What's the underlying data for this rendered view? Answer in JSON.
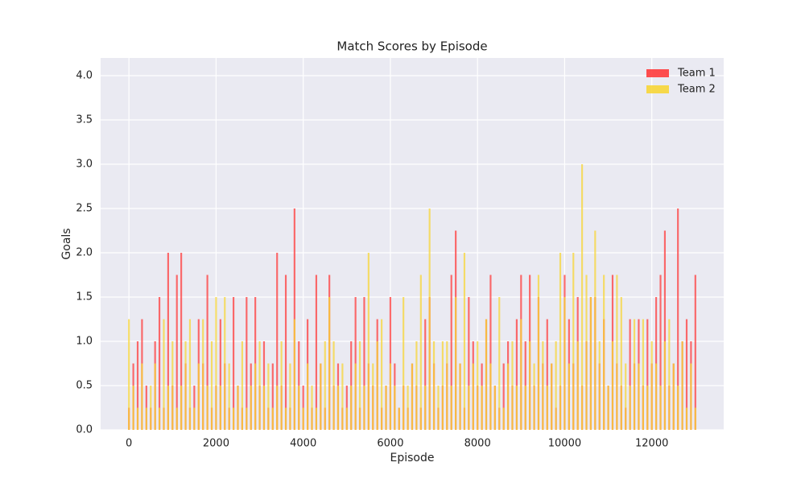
{
  "chart_data": {
    "type": "bar",
    "title": "Match Scores by Episode",
    "x_label": "Episode",
    "y_label": "Goals",
    "x": [
      0,
      100,
      200,
      300,
      400,
      500,
      600,
      700,
      800,
      900,
      1000,
      1100,
      1200,
      1300,
      1400,
      1500,
      1600,
      1700,
      1800,
      1900,
      2000,
      2100,
      2200,
      2300,
      2400,
      2500,
      2600,
      2700,
      2800,
      2900,
      3000,
      3100,
      3200,
      3300,
      3400,
      3500,
      3600,
      3700,
      3800,
      3900,
      4000,
      4100,
      4200,
      4300,
      4400,
      4500,
      4600,
      4700,
      4800,
      4900,
      5000,
      5100,
      5200,
      5300,
      5400,
      5500,
      5600,
      5700,
      5800,
      5900,
      6000,
      6100,
      6200,
      6300,
      6400,
      6500,
      6600,
      6700,
      6800,
      6900,
      7000,
      7100,
      7200,
      7300,
      7400,
      7500,
      7600,
      7700,
      7800,
      7900,
      8000,
      8100,
      8200,
      8300,
      8400,
      8500,
      8600,
      8700,
      8800,
      8900,
      9000,
      9100,
      9200,
      9300,
      9400,
      9500,
      9600,
      9700,
      9800,
      9900,
      10000,
      10100,
      10200,
      10300,
      10400,
      10500,
      10600,
      10700,
      10800,
      10900,
      11000,
      11100,
      11200,
      11300,
      11400,
      11500,
      11600,
      11700,
      11800,
      11900,
      12000,
      12100,
      12200,
      12300,
      12400,
      12500,
      12600,
      12700,
      12800,
      12900,
      13000
    ],
    "series": [
      {
        "name": "Team 1",
        "color": "#ff3b3b",
        "values": [
          0.25,
          0.75,
          1.0,
          1.25,
          0.5,
          0.25,
          1.0,
          1.5,
          0.25,
          2.0,
          0.5,
          1.75,
          2.0,
          0.75,
          0.25,
          0.5,
          1.25,
          0.75,
          1.75,
          0.25,
          0.5,
          1.25,
          0.75,
          0.25,
          1.5,
          0.5,
          0.25,
          1.5,
          0.75,
          1.5,
          0.5,
          1.0,
          0.25,
          0.75,
          2.0,
          0.5,
          1.75,
          0.25,
          2.5,
          1.0,
          0.5,
          1.25,
          0.25,
          1.75,
          0.75,
          0.25,
          1.75,
          0.5,
          0.75,
          0.25,
          0.5,
          1.0,
          1.5,
          0.25,
          1.5,
          0.75,
          0.5,
          1.25,
          0.25,
          0.5,
          1.5,
          0.75,
          0.25,
          0.5,
          0.25,
          0.75,
          0.5,
          0.25,
          1.25,
          1.5,
          0.75,
          0.25,
          0.5,
          0.75,
          1.75,
          2.25,
          0.75,
          0.25,
          1.5,
          1.0,
          0.5,
          0.75,
          1.25,
          1.75,
          0.5,
          0.25,
          0.75,
          1.0,
          0.5,
          1.25,
          1.75,
          1.0,
          1.75,
          0.5,
          1.5,
          0.75,
          1.25,
          0.75,
          0.25,
          0.5,
          1.75,
          1.25,
          0.75,
          1.5,
          0.5,
          1.0,
          1.5,
          1.5,
          0.75,
          1.25,
          0.5,
          1.75,
          0.75,
          0.5,
          0.25,
          1.25,
          0.75,
          1.25,
          0.5,
          1.25,
          0.75,
          1.5,
          1.75,
          2.25,
          0.5,
          0.75,
          2.5,
          1.0,
          1.25,
          1.0,
          1.75
        ]
      },
      {
        "name": "Team 2",
        "color": "#f7d637",
        "values": [
          1.25,
          0.5,
          0.25,
          0.75,
          0.25,
          0.5,
          0.75,
          0.25,
          1.25,
          0.5,
          1.0,
          0.25,
          0.5,
          1.0,
          1.25,
          0.25,
          0.75,
          1.25,
          0.5,
          1.0,
          1.5,
          0.5,
          1.5,
          0.75,
          0.25,
          0.5,
          1.0,
          0.25,
          0.5,
          0.75,
          1.0,
          0.5,
          0.75,
          0.25,
          0.5,
          1.0,
          0.25,
          0.75,
          1.25,
          0.5,
          0.25,
          0.75,
          0.5,
          0.25,
          0.75,
          1.0,
          1.5,
          1.0,
          0.5,
          0.75,
          0.25,
          0.5,
          0.75,
          1.0,
          0.5,
          2.0,
          0.75,
          1.0,
          1.25,
          0.5,
          0.75,
          0.5,
          0.25,
          1.5,
          0.5,
          0.75,
          1.0,
          1.75,
          0.5,
          2.5,
          1.0,
          0.5,
          1.0,
          1.0,
          0.5,
          1.5,
          0.75,
          2.0,
          0.5,
          0.75,
          1.0,
          0.5,
          1.25,
          0.75,
          0.5,
          1.5,
          0.25,
          0.75,
          1.0,
          0.5,
          1.25,
          0.5,
          1.0,
          0.75,
          1.75,
          1.0,
          0.5,
          0.75,
          1.0,
          2.0,
          1.5,
          0.75,
          2.0,
          1.0,
          3.0,
          1.75,
          1.5,
          2.25,
          1.0,
          1.75,
          0.5,
          1.0,
          1.75,
          1.5,
          0.75,
          0.5,
          1.25,
          0.75,
          1.25,
          0.5,
          1.0,
          0.75,
          0.5,
          1.0,
          1.25,
          0.75,
          0.5,
          1.0,
          0.25,
          0.75,
          0.25
        ]
      }
    ],
    "xlim": [
      -650,
      13650
    ],
    "xticks": [
      0,
      2000,
      4000,
      6000,
      8000,
      10000,
      12000
    ],
    "ylim": [
      0,
      4.2
    ],
    "yticks": [
      {
        "value": 0,
        "label": "0.0"
      },
      0.5,
      {
        "value": 1,
        "label": "1.0"
      },
      1.5,
      {
        "value": 2,
        "label": "2.0"
      },
      2.5,
      {
        "value": 3,
        "label": "3.0"
      },
      3.5,
      {
        "value": 4,
        "label": "4.0"
      }
    ],
    "grid": true,
    "legend": "upper right"
  }
}
